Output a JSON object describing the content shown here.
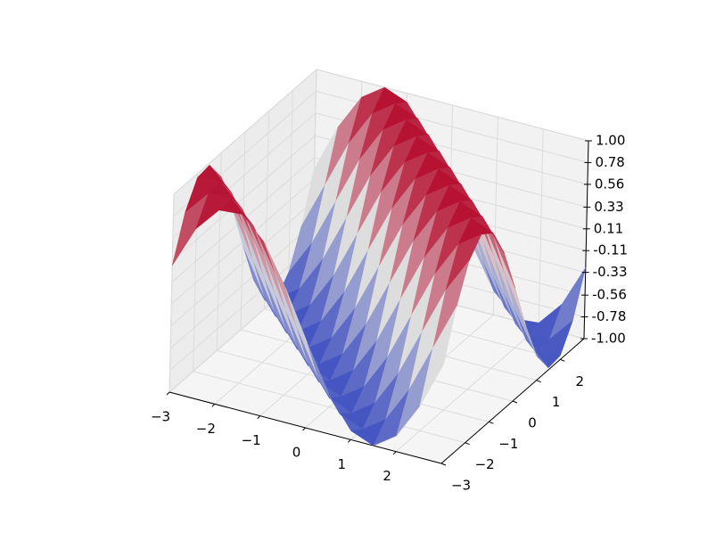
{
  "chart_data": {
    "type": "surface",
    "x": [
      -3,
      -2.5,
      -2,
      -1.5,
      -1,
      -0.5,
      0,
      0.5,
      1,
      1.5,
      2,
      2.5,
      3
    ],
    "y": [
      -3,
      -2.5,
      -2,
      -1.5,
      -1,
      -0.5,
      0,
      0.5,
      1,
      1.5,
      2,
      2.5,
      3
    ],
    "z": [
      [
        0.28,
        0.71,
        0.96,
        0.98,
        0.76,
        0.35,
        -0.14,
        -0.6,
        -0.91,
        -1,
        -0.84,
        -0.48,
        0
      ],
      [
        0.71,
        0.96,
        0.98,
        0.76,
        0.35,
        -0.14,
        -0.6,
        -0.91,
        -1,
        -0.84,
        -0.48,
        0,
        0.48
      ],
      [
        0.96,
        0.98,
        0.76,
        0.35,
        -0.14,
        -0.6,
        -0.91,
        -1,
        -0.84,
        -0.48,
        0,
        0.48,
        0.84
      ],
      [
        0.98,
        0.76,
        0.35,
        -0.14,
        -0.6,
        -0.91,
        -1,
        -0.84,
        -0.48,
        0,
        0.48,
        0.84,
        1
      ],
      [
        0.76,
        0.35,
        -0.14,
        -0.6,
        -0.91,
        -1,
        -0.84,
        -0.48,
        0,
        0.48,
        0.84,
        1,
        0.91
      ],
      [
        0.35,
        -0.14,
        -0.6,
        -0.91,
        -1,
        -0.84,
        -0.48,
        0,
        0.48,
        0.84,
        1,
        0.91,
        0.6
      ],
      [
        -0.14,
        -0.6,
        -0.91,
        -1,
        -0.84,
        -0.48,
        0,
        0.48,
        0.84,
        1,
        0.91,
        0.6,
        0.14
      ],
      [
        -0.6,
        -0.91,
        -1,
        -0.84,
        -0.48,
        0,
        0.48,
        0.84,
        1,
        0.91,
        0.6,
        0.14,
        -0.35
      ],
      [
        -0.91,
        -1,
        -0.84,
        -0.48,
        0,
        0.48,
        0.84,
        1,
        0.91,
        0.6,
        0.14,
        -0.35,
        -0.76
      ],
      [
        -1,
        -0.84,
        -0.48,
        0,
        0.48,
        0.84,
        1,
        0.91,
        0.6,
        0.14,
        -0.35,
        -0.76,
        -0.98
      ],
      [
        -0.84,
        -0.48,
        0,
        0.48,
        0.84,
        1,
        0.91,
        0.6,
        0.14,
        -0.35,
        -0.76,
        -0.98,
        -0.96
      ],
      [
        -0.48,
        0,
        0.48,
        0.84,
        1,
        0.91,
        0.6,
        0.14,
        -0.35,
        -0.76,
        -0.98,
        -0.96,
        -0.71
      ],
      [
        0,
        0.48,
        0.84,
        1,
        0.91,
        0.6,
        0.14,
        -0.35,
        -0.76,
        -0.98,
        -0.96,
        -0.71,
        -0.28
      ]
    ],
    "colormap": [
      "#3b4cc0",
      "#dddddd",
      "#b40426"
    ],
    "xlim": [
      -3,
      3
    ],
    "ylim": [
      -3,
      3
    ],
    "zlim": [
      -1,
      1
    ],
    "xticks": [
      {
        "value": -3,
        "label": "−3"
      },
      {
        "value": -2,
        "label": "−2"
      },
      {
        "value": -1,
        "label": "−1"
      },
      0,
      1,
      2
    ],
    "yticks": [
      {
        "value": -3,
        "label": "−3"
      },
      {
        "value": -2,
        "label": "−2"
      },
      {
        "value": -1,
        "label": "−1"
      },
      0,
      1,
      2
    ],
    "zticks": [
      {
        "value": -1,
        "label": "-1.00"
      },
      {
        "value": -0.78,
        "label": "-0.78"
      },
      {
        "value": -0.56,
        "label": "-0.56"
      },
      {
        "value": -0.33,
        "label": "-0.33"
      },
      {
        "value": -0.11,
        "label": "-0.11"
      },
      {
        "value": 0.11,
        "label": "0.11"
      },
      {
        "value": 0.33,
        "label": "0.33"
      },
      {
        "value": 0.56,
        "label": "0.56"
      },
      {
        "value": 0.78,
        "label": "0.78"
      },
      {
        "value": 1,
        "label": "1.00"
      }
    ],
    "grid": true
  }
}
